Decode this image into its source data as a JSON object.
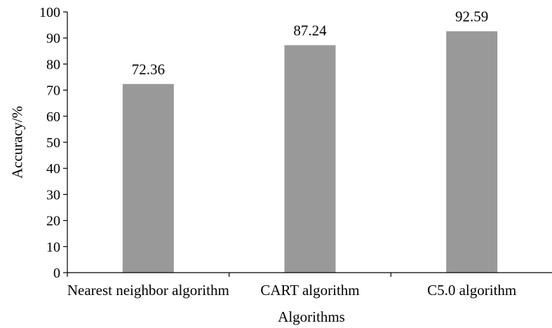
{
  "chart_data": {
    "type": "bar",
    "categories": [
      "Nearest neighbor algorithm",
      "CART algorithm",
      "C5.0 algorithm"
    ],
    "values": [
      72.36,
      87.24,
      92.59
    ],
    "data_labels": [
      "72.36",
      "87.24",
      "92.59"
    ],
    "xlabel": "Algorithms",
    "ylabel": "Accuracy/%",
    "ylim": [
      0,
      100
    ],
    "yticks": [
      0,
      10,
      20,
      30,
      40,
      50,
      60,
      70,
      80,
      90,
      100
    ],
    "grid": false,
    "bar_color": "#999999"
  }
}
